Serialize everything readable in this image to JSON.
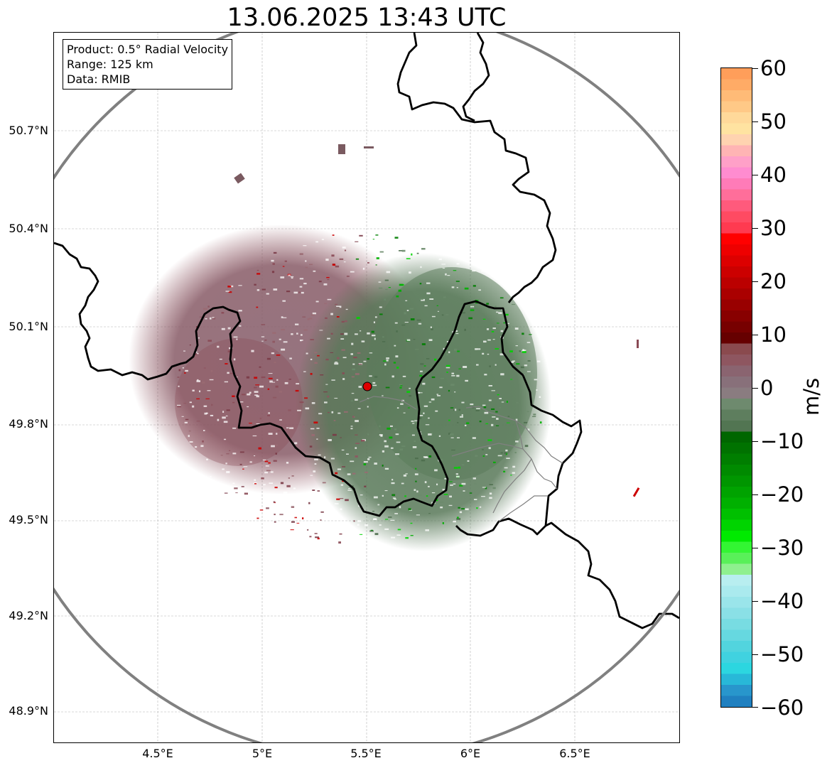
{
  "title": "13.06.2025 13:43 UTC",
  "info_box": {
    "product": "Product: 0.5° Radial Velocity",
    "range": "Range: 125 km",
    "data": "Data: RMIB"
  },
  "axes": {
    "lat_ticks": [
      "50.7°N",
      "50.4°N",
      "50.1°N",
      "49.8°N",
      "49.5°N",
      "49.2°N",
      "48.9°N"
    ],
    "lon_ticks": [
      "4.5°E",
      "5°E",
      "5.5°E",
      "6°E",
      "6.5°E"
    ],
    "grid": true
  },
  "colorbar": {
    "unit": "m/s",
    "ticks": [
      "60",
      "50",
      "40",
      "30",
      "20",
      "10",
      "0",
      "−10",
      "−20",
      "−30",
      "−40",
      "−50",
      "−60"
    ],
    "min": -60,
    "max": 60,
    "colors_top_to_bottom": [
      "#ff9e5a",
      "#ffab66",
      "#ffbb77",
      "#ffc987",
      "#ffd99a",
      "#ffe3a1",
      "#ffd3b0",
      "#ffb4b4",
      "#ffa0c8",
      "#ff8cd0",
      "#ff7bb8",
      "#ff6e9a",
      "#ff5a7c",
      "#ff4a62",
      "#ff3a50",
      "#ff0000",
      "#ee0000",
      "#dd0000",
      "#cc0000",
      "#bb0000",
      "#aa0000",
      "#990000",
      "#880000",
      "#770000",
      "#660000",
      "#8a4a4e",
      "#8e5660",
      "#8a6470",
      "#88707a",
      "#8a7c80",
      "#6e8a6e",
      "#5e7e5e",
      "#527552",
      "#006600",
      "#007200",
      "#007e00",
      "#008a00",
      "#009600",
      "#00a300",
      "#00b000",
      "#00c000",
      "#00d400",
      "#00ea00",
      "#33f533",
      "#59f059",
      "#8ff08f",
      "#b8eef0",
      "#aaeaee",
      "#9ae5ea",
      "#8ae0e6",
      "#78dce2",
      "#66d8e0",
      "#52d4de",
      "#40d2e0",
      "#2cd6e0",
      "#28b8d8",
      "#2896cc",
      "#2080c0"
    ]
  },
  "radar_site": {
    "marker_color": "#dd0000",
    "lat": 49.915,
    "lon": 5.505
  },
  "map_colors": {
    "border": "#000000",
    "range_ring": "#808080",
    "inbound_green": "#5e7e5e",
    "outbound_red": "#8a5e66"
  }
}
